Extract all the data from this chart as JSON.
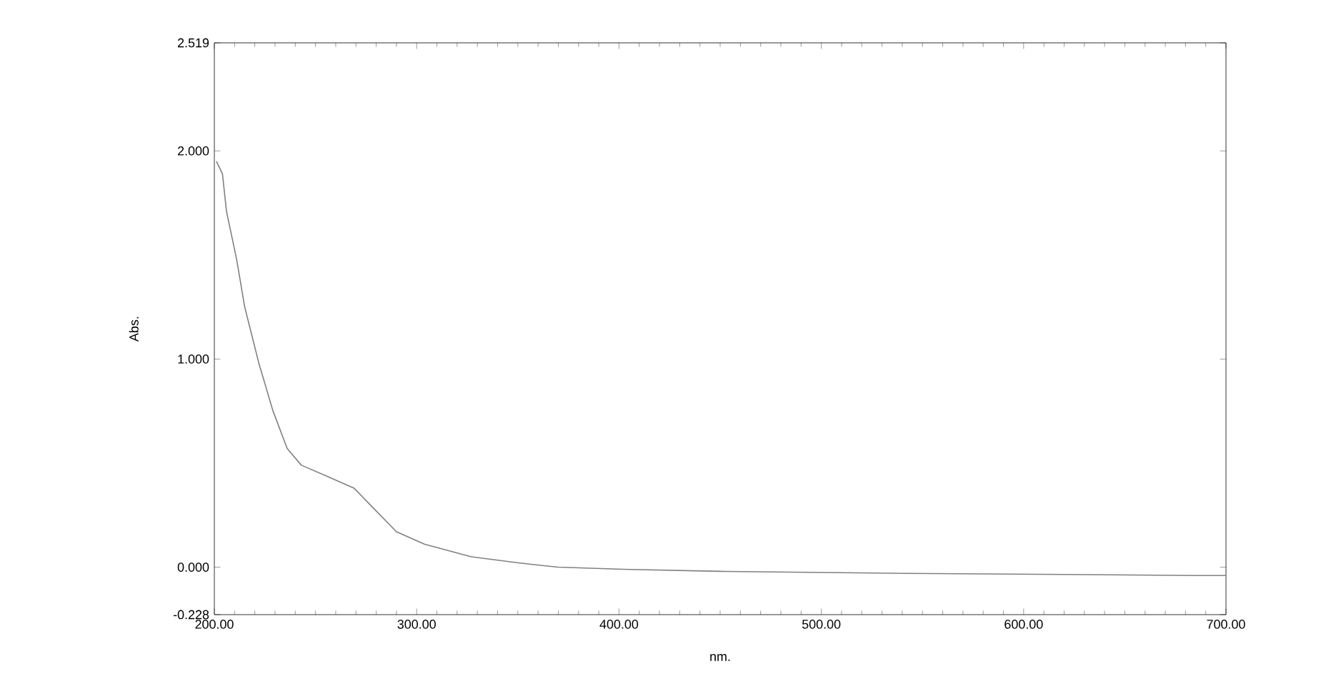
{
  "chart_data": {
    "type": "line",
    "xlabel": "nm.",
    "ylabel": "Abs.",
    "xlim": [
      200,
      700
    ],
    "ylim": [
      -0.228,
      2.519
    ],
    "xticks": [
      {
        "value": 200,
        "label": "200.00"
      },
      {
        "value": 300,
        "label": "300.00"
      },
      {
        "value": 400,
        "label": "400.00"
      },
      {
        "value": 500,
        "label": "500.00"
      },
      {
        "value": 600,
        "label": "600.00"
      },
      {
        "value": 700,
        "label": "700.00"
      }
    ],
    "yticks": [
      {
        "value": -0.228,
        "label": "-0.228"
      },
      {
        "value": 0,
        "label": "0.000"
      },
      {
        "value": 1,
        "label": "1.000"
      },
      {
        "value": 2,
        "label": "2.000"
      },
      {
        "value": 2.519,
        "label": "2.519"
      }
    ],
    "grid": false,
    "marker": "none",
    "line_style": "solid",
    "series": [
      {
        "color": "#808080",
        "x": [
          201,
          204,
          206,
          211,
          215,
          222,
          229,
          236,
          243,
          255,
          269,
          278,
          290,
          304,
          327,
          351,
          370,
          402,
          450,
          542,
          620,
          686,
          700
        ],
        "values": [
          1.95,
          1.89,
          1.71,
          1.48,
          1.25,
          0.98,
          0.75,
          0.57,
          0.49,
          0.44,
          0.38,
          0.29,
          0.17,
          0.11,
          0.05,
          0.02,
          0.0,
          -0.01,
          -0.02,
          -0.03,
          -0.035,
          -0.04,
          -0.04
        ]
      }
    ]
  }
}
